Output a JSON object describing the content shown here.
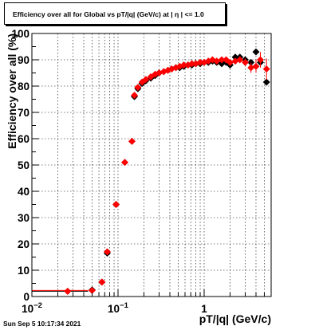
{
  "title": "Efficiency over all for Global vs pT/|q| (GeV/c) at |  η | <= 1.0",
  "datestamp": "Sun Sep  5 10:17:34 2021",
  "chart_data": {
    "type": "scatter",
    "xscale": "log",
    "xlabel": "pT/|q| (GeV/c)",
    "ylabel": "Efficiency over all (%)",
    "xlim": [
      0.01,
      6
    ],
    "ylim": [
      0,
      100
    ],
    "x_tick_labels": [
      "10−2",
      "10−1",
      "1"
    ],
    "y_tick_labels": [
      "0",
      "10",
      "20",
      "30",
      "40",
      "50",
      "60",
      "70",
      "80",
      "90",
      "100"
    ],
    "grid": true,
    "colors": {
      "black_series": "#000000",
      "red_series": "#ff0000"
    },
    "series": [
      {
        "marker": "diamond",
        "color": "#000000",
        "x": [
          0.026,
          0.05,
          0.065,
          0.075,
          0.095,
          0.12,
          0.145,
          0.155,
          0.17,
          0.19,
          0.21,
          0.24,
          0.27,
          0.3,
          0.34,
          0.38,
          0.42,
          0.47,
          0.52,
          0.58,
          0.65,
          0.72,
          0.8,
          0.9,
          1.0,
          1.12,
          1.25,
          1.4,
          1.6,
          1.8,
          2.0,
          2.3,
          2.6,
          3.0,
          3.5,
          4.0,
          4.5,
          5.3
        ],
        "y": [
          2,
          2.5,
          5.5,
          16.5,
          35,
          51,
          59,
          76,
          79,
          81,
          82,
          83,
          84,
          85,
          85.5,
          86,
          86.5,
          87,
          87,
          87.5,
          88,
          88,
          88.5,
          88.5,
          89,
          89,
          89.5,
          89,
          88.5,
          89,
          88,
          91,
          91,
          90,
          89,
          93,
          89,
          81.5
        ]
      },
      {
        "marker": "diamond",
        "color": "#ff0000",
        "x": [
          0.026,
          0.05,
          0.065,
          0.075,
          0.095,
          0.12,
          0.145,
          0.155,
          0.17,
          0.19,
          0.21,
          0.24,
          0.27,
          0.3,
          0.34,
          0.38,
          0.42,
          0.47,
          0.52,
          0.58,
          0.65,
          0.72,
          0.8,
          0.9,
          1.0,
          1.12,
          1.25,
          1.4,
          1.6,
          1.8,
          2.0,
          2.3,
          2.6,
          3.0,
          3.5,
          4.0,
          4.5,
          5.3
        ],
        "y": [
          2,
          2.3,
          5.5,
          17,
          35,
          51,
          59,
          76.5,
          79.5,
          81.5,
          82.5,
          83.5,
          84.5,
          85,
          85.5,
          86,
          86.5,
          87,
          87.5,
          88,
          88,
          88.5,
          88.5,
          89,
          89,
          89.5,
          90,
          89.5,
          90,
          90,
          89,
          89.5,
          90,
          89,
          87,
          87.5,
          90,
          86.5
        ],
        "yerr": [
          0,
          0,
          0,
          0,
          0,
          0,
          0,
          0,
          0,
          0,
          0,
          0,
          0,
          0,
          0,
          0,
          0,
          0,
          0,
          0,
          0,
          0,
          0,
          0,
          0,
          0,
          0,
          0,
          0,
          0,
          1,
          1,
          1.2,
          1.5,
          2,
          2.5,
          3,
          4
        ]
      }
    ]
  }
}
